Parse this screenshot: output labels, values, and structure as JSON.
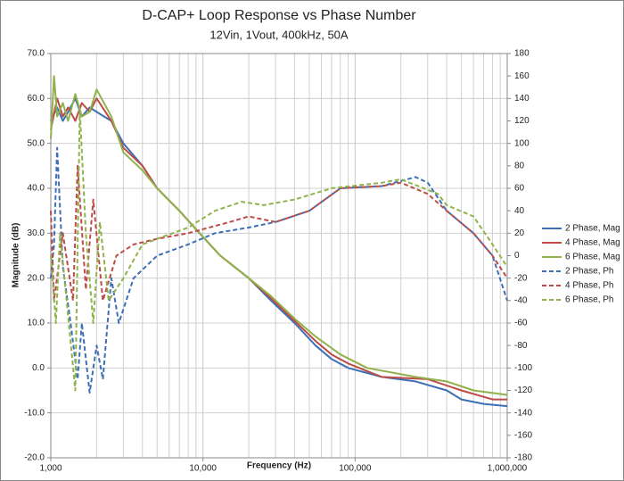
{
  "chart_data": {
    "type": "line",
    "title": "D-CAP+ Loop Response vs Phase Number",
    "subtitle": "12Vin, 1Vout, 400kHz, 50A",
    "x_label": "Frequency (Hz)",
    "y_label": "Magnitude (dB)",
    "x_log": true,
    "xlim": [
      1000,
      1000000
    ],
    "xticks": [
      {
        "value": 1000,
        "label": "1,000"
      },
      {
        "value": 10000,
        "label": "10,000"
      },
      {
        "value": 100000,
        "label": "100,000"
      },
      {
        "value": 1000000,
        "label": "1,000,000"
      }
    ],
    "xminor": [
      2000,
      3000,
      4000,
      5000,
      6000,
      7000,
      8000,
      9000,
      20000,
      30000,
      40000,
      50000,
      60000,
      70000,
      80000,
      90000,
      200000,
      300000,
      400000,
      500000,
      600000,
      700000,
      800000,
      900000
    ],
    "ylim": [
      -20,
      70
    ],
    "yticks": [
      {
        "value": -20,
        "label": "-20.0"
      },
      {
        "value": -10,
        "label": "-10.0"
      },
      {
        "value": 0,
        "label": "0.0"
      },
      {
        "value": 10,
        "label": "10.0"
      },
      {
        "value": 20,
        "label": "20.0"
      },
      {
        "value": 30,
        "label": "30.0"
      },
      {
        "value": 40,
        "label": "40.0"
      },
      {
        "value": 50,
        "label": "50.0"
      },
      {
        "value": 60,
        "label": "60.0"
      },
      {
        "value": 70,
        "label": "70.0"
      }
    ],
    "y2lim": [
      -180,
      180
    ],
    "y2ticks": [
      -180,
      -160,
      -140,
      -120,
      -100,
      -80,
      -60,
      -40,
      -20,
      0,
      20,
      40,
      60,
      80,
      100,
      120,
      140,
      160,
      180
    ],
    "grid": true,
    "legend": "right",
    "series": [
      {
        "name": "2 Phase, Mag",
        "color": "#3d6fb6",
        "dashed": false,
        "x": [
          1000,
          1100,
          1200,
          1300,
          1450,
          1600,
          1800,
          2000,
          2500,
          3000,
          4000,
          5000,
          7000,
          9500,
          13000,
          20000,
          28000,
          40000,
          55000,
          70000,
          90000,
          150000,
          250000,
          400000,
          500000,
          700000,
          1000000
        ],
        "values": [
          55,
          58,
          55,
          57,
          60,
          56,
          58,
          57,
          55,
          50,
          45,
          40,
          35,
          30,
          25,
          20,
          15,
          10,
          5,
          2,
          0,
          -2,
          -3,
          -5,
          -7,
          -8,
          -8.5
        ]
      },
      {
        "name": "4 Phase, Mag",
        "color": "#be4b48",
        "dashed": false,
        "x": [
          1000,
          1100,
          1200,
          1300,
          1450,
          1600,
          1800,
          2000,
          2500,
          3000,
          4000,
          5000,
          7000,
          9500,
          13000,
          20000,
          28000,
          40000,
          55000,
          70000,
          90000,
          150000,
          300000,
          500000,
          800000,
          1000000
        ],
        "values": [
          53,
          60,
          56,
          58,
          55,
          59,
          57,
          60,
          55,
          49,
          45,
          40,
          35,
          30,
          25,
          20,
          15.5,
          10.5,
          6,
          3,
          1,
          -2,
          -2.5,
          -5,
          -7,
          -7
        ]
      },
      {
        "name": "6 Phase, Mag",
        "color": "#8fb34a",
        "dashed": false,
        "x": [
          1000,
          1050,
          1100,
          1200,
          1300,
          1450,
          1600,
          1800,
          2000,
          2500,
          3000,
          4000,
          5000,
          7000,
          9500,
          13000,
          20000,
          28000,
          40000,
          55000,
          80000,
          120000,
          250000,
          400000,
          600000,
          1000000
        ],
        "values": [
          51,
          65,
          56,
          59,
          55,
          61,
          56,
          57,
          62,
          56,
          48,
          44,
          40,
          35,
          30,
          25,
          20,
          16,
          11,
          7,
          3,
          0,
          -2,
          -3,
          -5,
          -6
        ]
      },
      {
        "name": "2 Phase, Ph",
        "color": "#3d6fb6",
        "dashed": true,
        "axis": "y2",
        "x": [
          1000,
          1050,
          1100,
          1200,
          1350,
          1500,
          1600,
          1800,
          2000,
          2200,
          2500,
          2800,
          3500,
          5000,
          8000,
          12000,
          20000,
          30000,
          50000,
          80000,
          150000,
          250000,
          300000,
          400000,
          600000,
          800000,
          1000000
        ],
        "values": [
          -20,
          10,
          96,
          -10,
          -60,
          -110,
          -60,
          -122,
          -80,
          -110,
          -20,
          -60,
          -20,
          0,
          10,
          20,
          25,
          30,
          40,
          60,
          62,
          70,
          65,
          40,
          20,
          0,
          -40
        ]
      },
      {
        "name": "4 Phase, Ph",
        "color": "#be4b48",
        "dashed": true,
        "axis": "y2",
        "x": [
          1000,
          1050,
          1200,
          1400,
          1500,
          1700,
          1900,
          2200,
          2700,
          3500,
          5000,
          8000,
          15000,
          20000,
          30000,
          50000,
          80000,
          150000,
          200000,
          300000,
          400000,
          600000,
          800000,
          1000000
        ],
        "values": [
          40,
          -40,
          20,
          -40,
          80,
          -30,
          50,
          -40,
          0,
          10,
          15,
          20,
          30,
          35,
          30,
          40,
          60,
          62,
          65,
          55,
          40,
          20,
          0,
          -20
        ]
      },
      {
        "name": "6 Phase, Ph",
        "color": "#8fb34a",
        "dashed": true,
        "axis": "y2",
        "x": [
          1000,
          1080,
          1150,
          1250,
          1450,
          1550,
          1700,
          1900,
          2100,
          2400,
          3000,
          4000,
          5000,
          8000,
          12000,
          18000,
          25000,
          40000,
          70000,
          150000,
          200000,
          350000,
          400000,
          600000,
          800000,
          1000000
        ],
        "values": [
          0,
          -60,
          20,
          -30,
          -120,
          130,
          20,
          -60,
          30,
          -40,
          -20,
          10,
          15,
          25,
          40,
          48,
          45,
          50,
          60,
          65,
          68,
          55,
          45,
          35,
          10,
          -10
        ]
      }
    ]
  }
}
